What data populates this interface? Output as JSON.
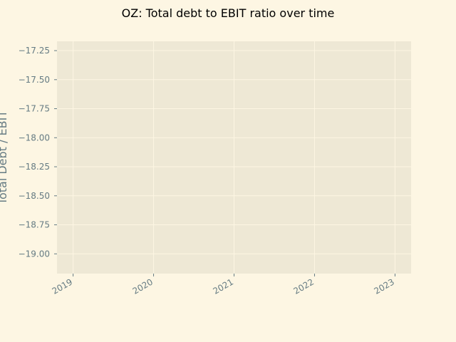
{
  "chart_data": {
    "type": "line",
    "title": "OZ: Total debt to EBIT ratio over time",
    "xlabel": "",
    "ylabel": "Total Debt / EBIT",
    "x_ticks": [
      "2019",
      "2020",
      "2021",
      "2022",
      "2023"
    ],
    "y_ticks": [
      "−17.25",
      "−17.50",
      "−17.75",
      "−18.00",
      "−18.25",
      "−18.50",
      "−18.75",
      "−19.00"
    ],
    "y_tick_values": [
      -17.25,
      -17.5,
      -17.75,
      -18.0,
      -18.25,
      -18.5,
      -18.75,
      -19.0
    ],
    "ylim": [
      -19.17,
      -17.17
    ],
    "xlim": [
      2018.8,
      2023.2
    ],
    "grid": true,
    "series": [],
    "colors": {
      "background": "#fdf6e3",
      "plot_background": "#eee8d5",
      "grid": "#fdf6e3",
      "tick_text": "#657b83",
      "title_text": "#000000"
    }
  }
}
